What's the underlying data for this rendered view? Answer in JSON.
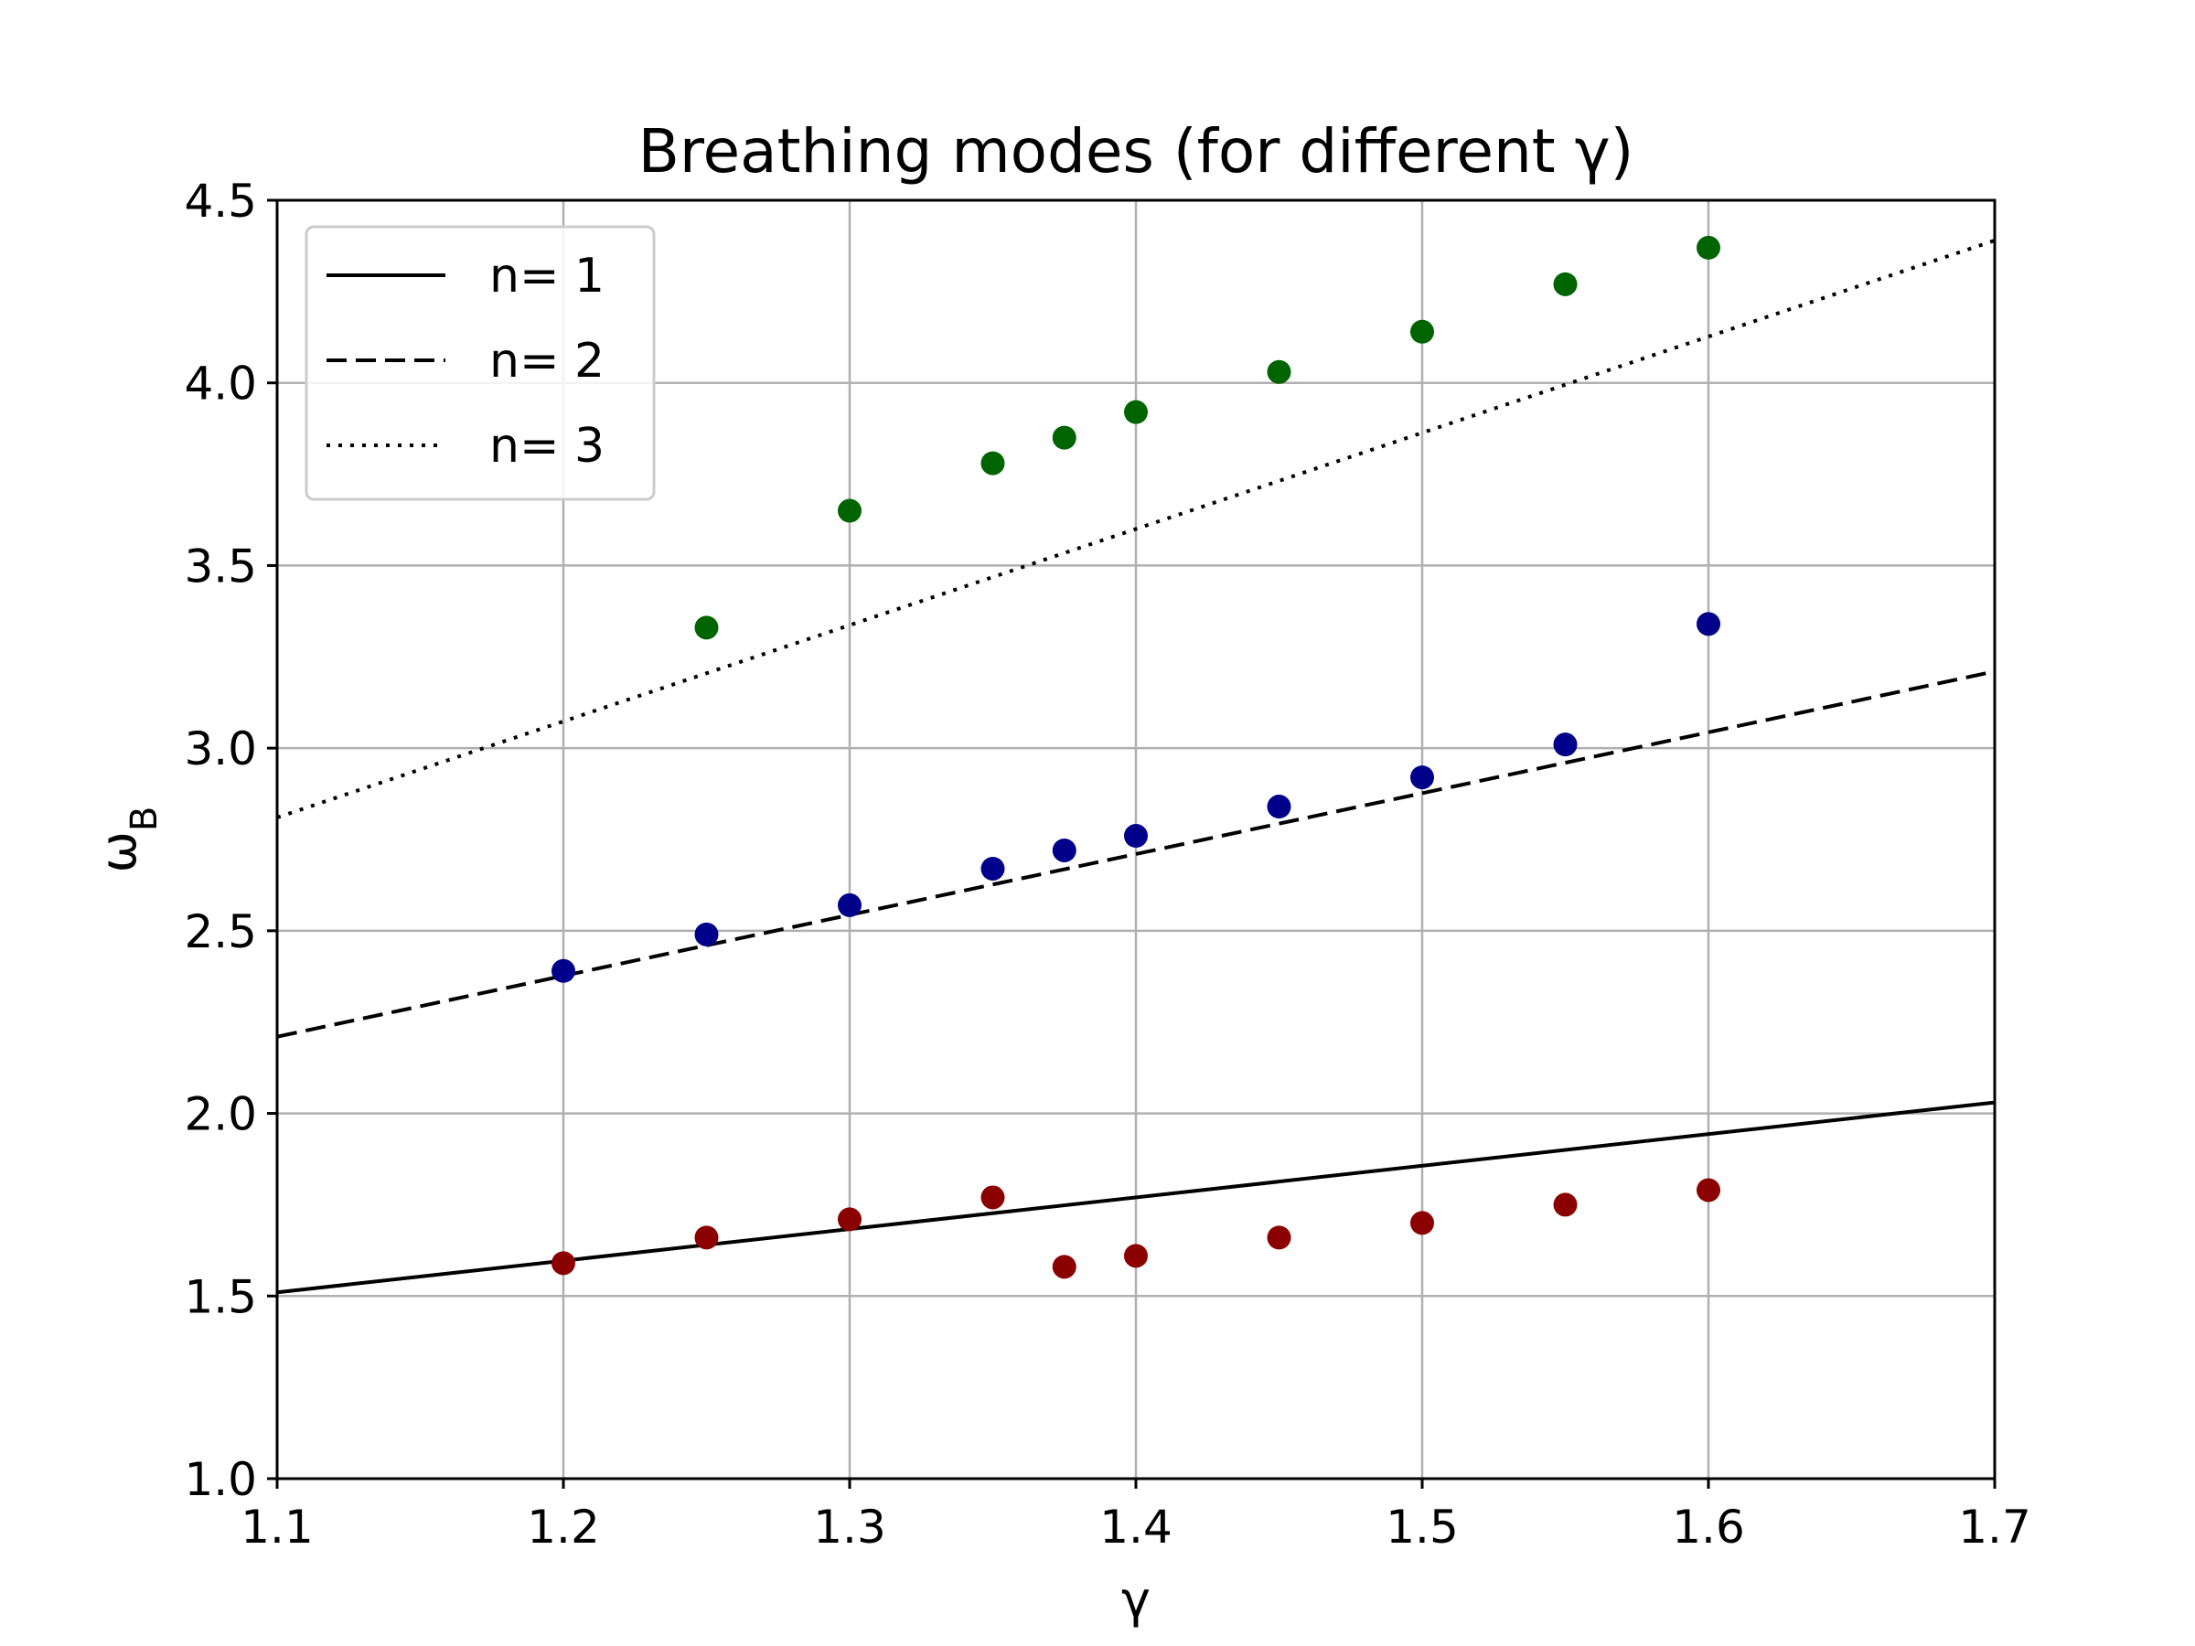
{
  "chart_data": {
    "type": "scatter",
    "title": "Breathing modes (for different γ)",
    "xlabel": "γ",
    "ylabel": "ω",
    "ylabel_sub": "B",
    "xlim": [
      1.1,
      1.7
    ],
    "ylim": [
      1.0,
      4.5
    ],
    "xticks": [
      "1.1",
      "1.2",
      "1.3",
      "1.4",
      "1.5",
      "1.6",
      "1.7"
    ],
    "yticks": [
      "1.0",
      "1.5",
      "2.0",
      "2.5",
      "3.0",
      "3.5",
      "4.0",
      "4.5"
    ],
    "grid": true,
    "legend_position": "upper-left",
    "lines": [
      {
        "name": "n= 1",
        "style": "solid",
        "x": [
          1.1,
          1.7
        ],
        "y": [
          1.51,
          2.03
        ]
      },
      {
        "name": "n= 2",
        "style": "dashed",
        "x": [
          1.1,
          1.7
        ],
        "y": [
          2.21,
          3.21
        ]
      },
      {
        "name": "n= 3",
        "style": "dotted",
        "x": [
          1.1,
          1.7
        ],
        "y": [
          2.81,
          4.39
        ]
      }
    ],
    "scatter_series": [
      {
        "color": "#8b0000",
        "x": [
          1.2,
          1.25,
          1.3,
          1.35,
          1.375,
          1.4,
          1.45,
          1.5,
          1.55,
          1.6
        ],
        "y": [
          1.59,
          1.66,
          1.71,
          1.77,
          1.58,
          1.61,
          1.66,
          1.7,
          1.75,
          1.79
        ]
      },
      {
        "color": "#00008b",
        "x": [
          1.2,
          1.25,
          1.3,
          1.35,
          1.375,
          1.4,
          1.45,
          1.5,
          1.55,
          1.6
        ],
        "y": [
          2.39,
          2.49,
          2.57,
          2.67,
          2.72,
          2.76,
          2.84,
          2.92,
          3.01,
          3.34
        ]
      },
      {
        "color": "#006400",
        "x": [
          1.25,
          1.3,
          1.35,
          1.375,
          1.4,
          1.45,
          1.5,
          1.55,
          1.6
        ],
        "y": [
          3.33,
          3.65,
          3.78,
          3.85,
          3.92,
          4.03,
          4.14,
          4.27,
          4.37
        ]
      }
    ]
  }
}
